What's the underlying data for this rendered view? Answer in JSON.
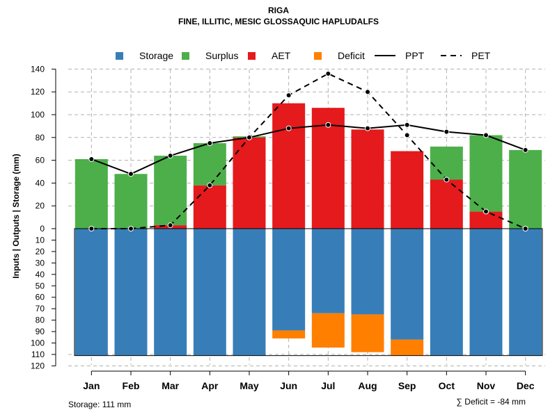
{
  "title": "RIGA",
  "subtitle": "FINE, ILLITIC, MESIC GLOSSAQUIC HAPLUDALFS",
  "legend": [
    {
      "label": "Storage",
      "color": "#377EB8",
      "kind": "box"
    },
    {
      "label": "Surplus",
      "color": "#4DAF4A",
      "kind": "box"
    },
    {
      "label": "AET",
      "color": "#E41A1C",
      "kind": "box"
    },
    {
      "label": "Deficit",
      "color": "#FF7F00",
      "kind": "box"
    },
    {
      "label": "PPT",
      "color": "#000000",
      "kind": "solid"
    },
    {
      "label": "PET",
      "color": "#000000",
      "kind": "dashed"
    }
  ],
  "footer": {
    "storage": "Storage: 111 mm",
    "deficit": "∑ Deficit = -84 mm"
  },
  "chart_data": {
    "type": "bar",
    "title": "RIGA",
    "subtitle": "FINE, ILLITIC, MESIC GLOSSAQUIC HAPLUDALFS",
    "ylabel": "Inputs | Outputs | Storage    (mm)",
    "xlabel": "",
    "ylim_top": [
      0,
      140
    ],
    "ylim_bottom": [
      0,
      120
    ],
    "upper_ticks": [
      0,
      20,
      40,
      60,
      80,
      100,
      120,
      140
    ],
    "lower_ticks": [
      10,
      20,
      30,
      40,
      50,
      60,
      70,
      80,
      90,
      100,
      110,
      120
    ],
    "grid": true,
    "categories": [
      "Jan",
      "Feb",
      "Mar",
      "Apr",
      "May",
      "Jun",
      "Jul",
      "Aug",
      "Sep",
      "Oct",
      "Nov",
      "Dec"
    ],
    "series": [
      {
        "name": "AET",
        "color": "#E41A1C",
        "values": [
          0,
          0,
          3,
          38,
          80,
          110,
          106,
          87,
          68,
          43,
          15,
          0
        ]
      },
      {
        "name": "Surplus",
        "color": "#4DAF4A",
        "values": [
          61,
          48,
          61,
          37,
          1,
          0,
          0,
          0,
          0,
          29,
          67,
          69
        ]
      },
      {
        "name": "Storage",
        "color": "#377EB8",
        "values": [
          111,
          111,
          111,
          111,
          111,
          89,
          74,
          75,
          97,
          111,
          111,
          111
        ]
      },
      {
        "name": "Deficit",
        "color": "#FF7F00",
        "values": [
          0,
          0,
          0,
          0,
          0,
          7,
          30,
          33,
          14,
          0,
          0,
          0
        ]
      },
      {
        "name": "PPT",
        "color": "#000000",
        "values": [
          61,
          48,
          64,
          75,
          80,
          88,
          91,
          88,
          91,
          85,
          82,
          69
        ]
      },
      {
        "name": "PET",
        "color": "#000000",
        "values": [
          0,
          0,
          3,
          38,
          80,
          117,
          136,
          120,
          82,
          43,
          15,
          0
        ]
      }
    ],
    "storage_capacity": 111
  }
}
